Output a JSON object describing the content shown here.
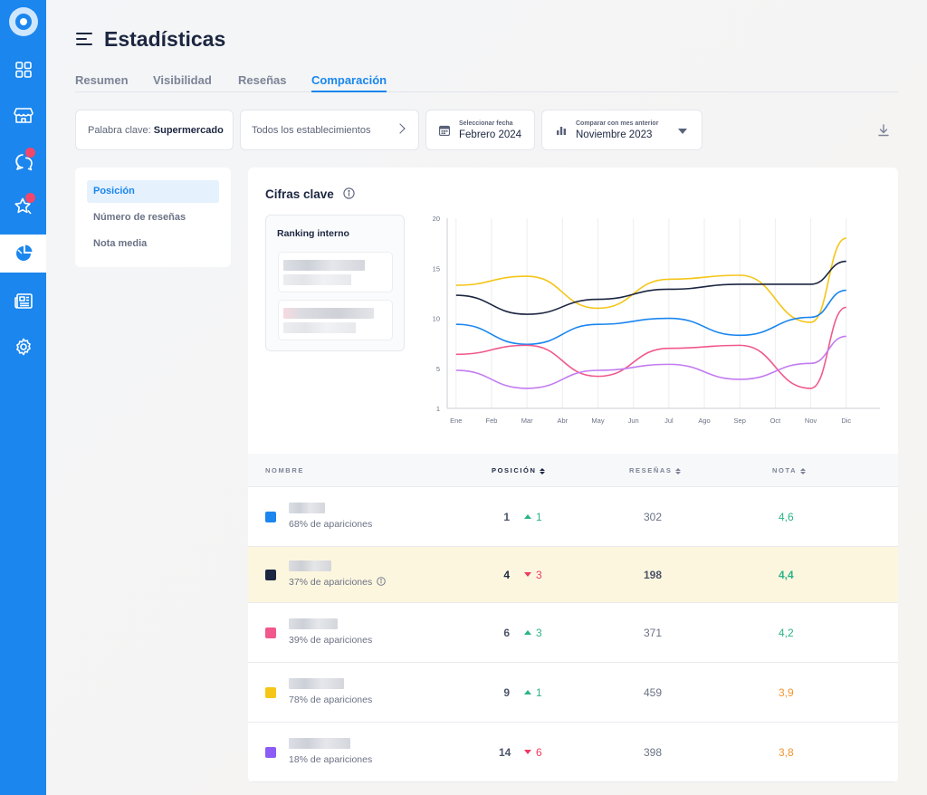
{
  "page": {
    "title": "Estadísticas",
    "tabs": [
      {
        "label": "Resumen",
        "active": false
      },
      {
        "label": "Visibilidad",
        "active": false
      },
      {
        "label": "Reseñas",
        "active": false
      },
      {
        "label": "Comparación",
        "active": true
      }
    ]
  },
  "sidebar": {
    "items": [
      {
        "icon": "dashboard-grid-icon",
        "active": false,
        "badge": false
      },
      {
        "icon": "store-icon",
        "active": false,
        "badge": false
      },
      {
        "icon": "chat-bubbles-icon",
        "active": false,
        "badge": true
      },
      {
        "icon": "star-reviews-icon",
        "active": false,
        "badge": true
      },
      {
        "icon": "statistics-pie-icon",
        "active": true,
        "badge": false
      },
      {
        "icon": "newspaper-icon",
        "active": false,
        "badge": false
      },
      {
        "icon": "settings-gear-icon",
        "active": false,
        "badge": false
      }
    ]
  },
  "filters": {
    "keyword_label": "Palabra clave:",
    "keyword_value": "Supermercado",
    "establishments": "Todos los establecimientos",
    "date_label": "Seleccionar fecha",
    "date_value": "Febrero 2024",
    "compare_label": "Comparar con mes anterior",
    "compare_value": "Noviembre 2023"
  },
  "left_menu": {
    "items": [
      {
        "label": "Posición",
        "active": true
      },
      {
        "label": "Número de reseñas",
        "active": false
      },
      {
        "label": "Nota media",
        "active": false
      }
    ]
  },
  "card": {
    "title": "Cifras clave",
    "ranking_title": "Ranking interno"
  },
  "chart_data": {
    "type": "line",
    "x": [
      "Ene",
      "Feb",
      "Mar",
      "Abr",
      "May",
      "Jun",
      "Jul",
      "Ago",
      "Sep",
      "Oct",
      "Nov",
      "Dic"
    ],
    "y_ticks": [
      1,
      5,
      10,
      15,
      20
    ],
    "ylim": [
      1,
      20
    ],
    "grid": true,
    "series": [
      {
        "color": "#f5c518",
        "values": [
          13.3,
          null,
          14.2,
          null,
          11,
          null,
          13.9,
          null,
          14.3,
          null,
          9.6,
          18
        ]
      },
      {
        "color": "#1c2640",
        "values": [
          12.3,
          null,
          10.4,
          null,
          11.9,
          null,
          12.9,
          null,
          13.4,
          null,
          13.4,
          15.7
        ]
      },
      {
        "color": "#1a86ee",
        "values": [
          9.4,
          null,
          7.4,
          null,
          9.4,
          null,
          10,
          null,
          8.3,
          null,
          10.1,
          12.8
        ]
      },
      {
        "color": "#f1588d",
        "values": [
          6.4,
          null,
          7.3,
          null,
          4.2,
          null,
          7,
          null,
          7.3,
          null,
          3,
          11.1
        ]
      },
      {
        "color": "#c27cf2",
        "values": [
          4.8,
          null,
          3,
          null,
          4.8,
          null,
          5.4,
          null,
          3.9,
          null,
          5.5,
          8.2
        ]
      }
    ]
  },
  "table": {
    "headers": {
      "name": "NOMBRE",
      "position": "POSICIÓN",
      "reviews": "RESEÑAS",
      "note": "NOTA"
    },
    "rows": [
      {
        "color": "#1a86ee",
        "appearances": "68% de apariciones",
        "position": "1",
        "delta_dir": "up",
        "delta": "1",
        "reviews": "302",
        "note": "4,6",
        "note_color": "#2bb48a",
        "highlight": false,
        "info": false
      },
      {
        "color": "#1c2640",
        "appearances": "37% de apariciones",
        "position": "4",
        "delta_dir": "down",
        "delta": "3",
        "reviews": "198",
        "note": "4,4",
        "note_color": "#2bb48a",
        "highlight": true,
        "info": true
      },
      {
        "color": "#f1588d",
        "appearances": "39% de apariciones",
        "position": "6",
        "delta_dir": "up",
        "delta": "3",
        "reviews": "371",
        "note": "4,2",
        "note_color": "#2bb48a",
        "highlight": false,
        "info": false
      },
      {
        "color": "#f5c518",
        "appearances": "78% de apariciones",
        "position": "9",
        "delta_dir": "up",
        "delta": "1",
        "reviews": "459",
        "note": "3,9",
        "note_color": "#f3952e",
        "highlight": false,
        "info": false
      },
      {
        "color": "#8b5cf6",
        "appearances": "18% de apariciones",
        "position": "14",
        "delta_dir": "down",
        "delta": "6",
        "reviews": "398",
        "note": "3,8",
        "note_color": "#f3952e",
        "highlight": false,
        "info": false
      }
    ]
  }
}
